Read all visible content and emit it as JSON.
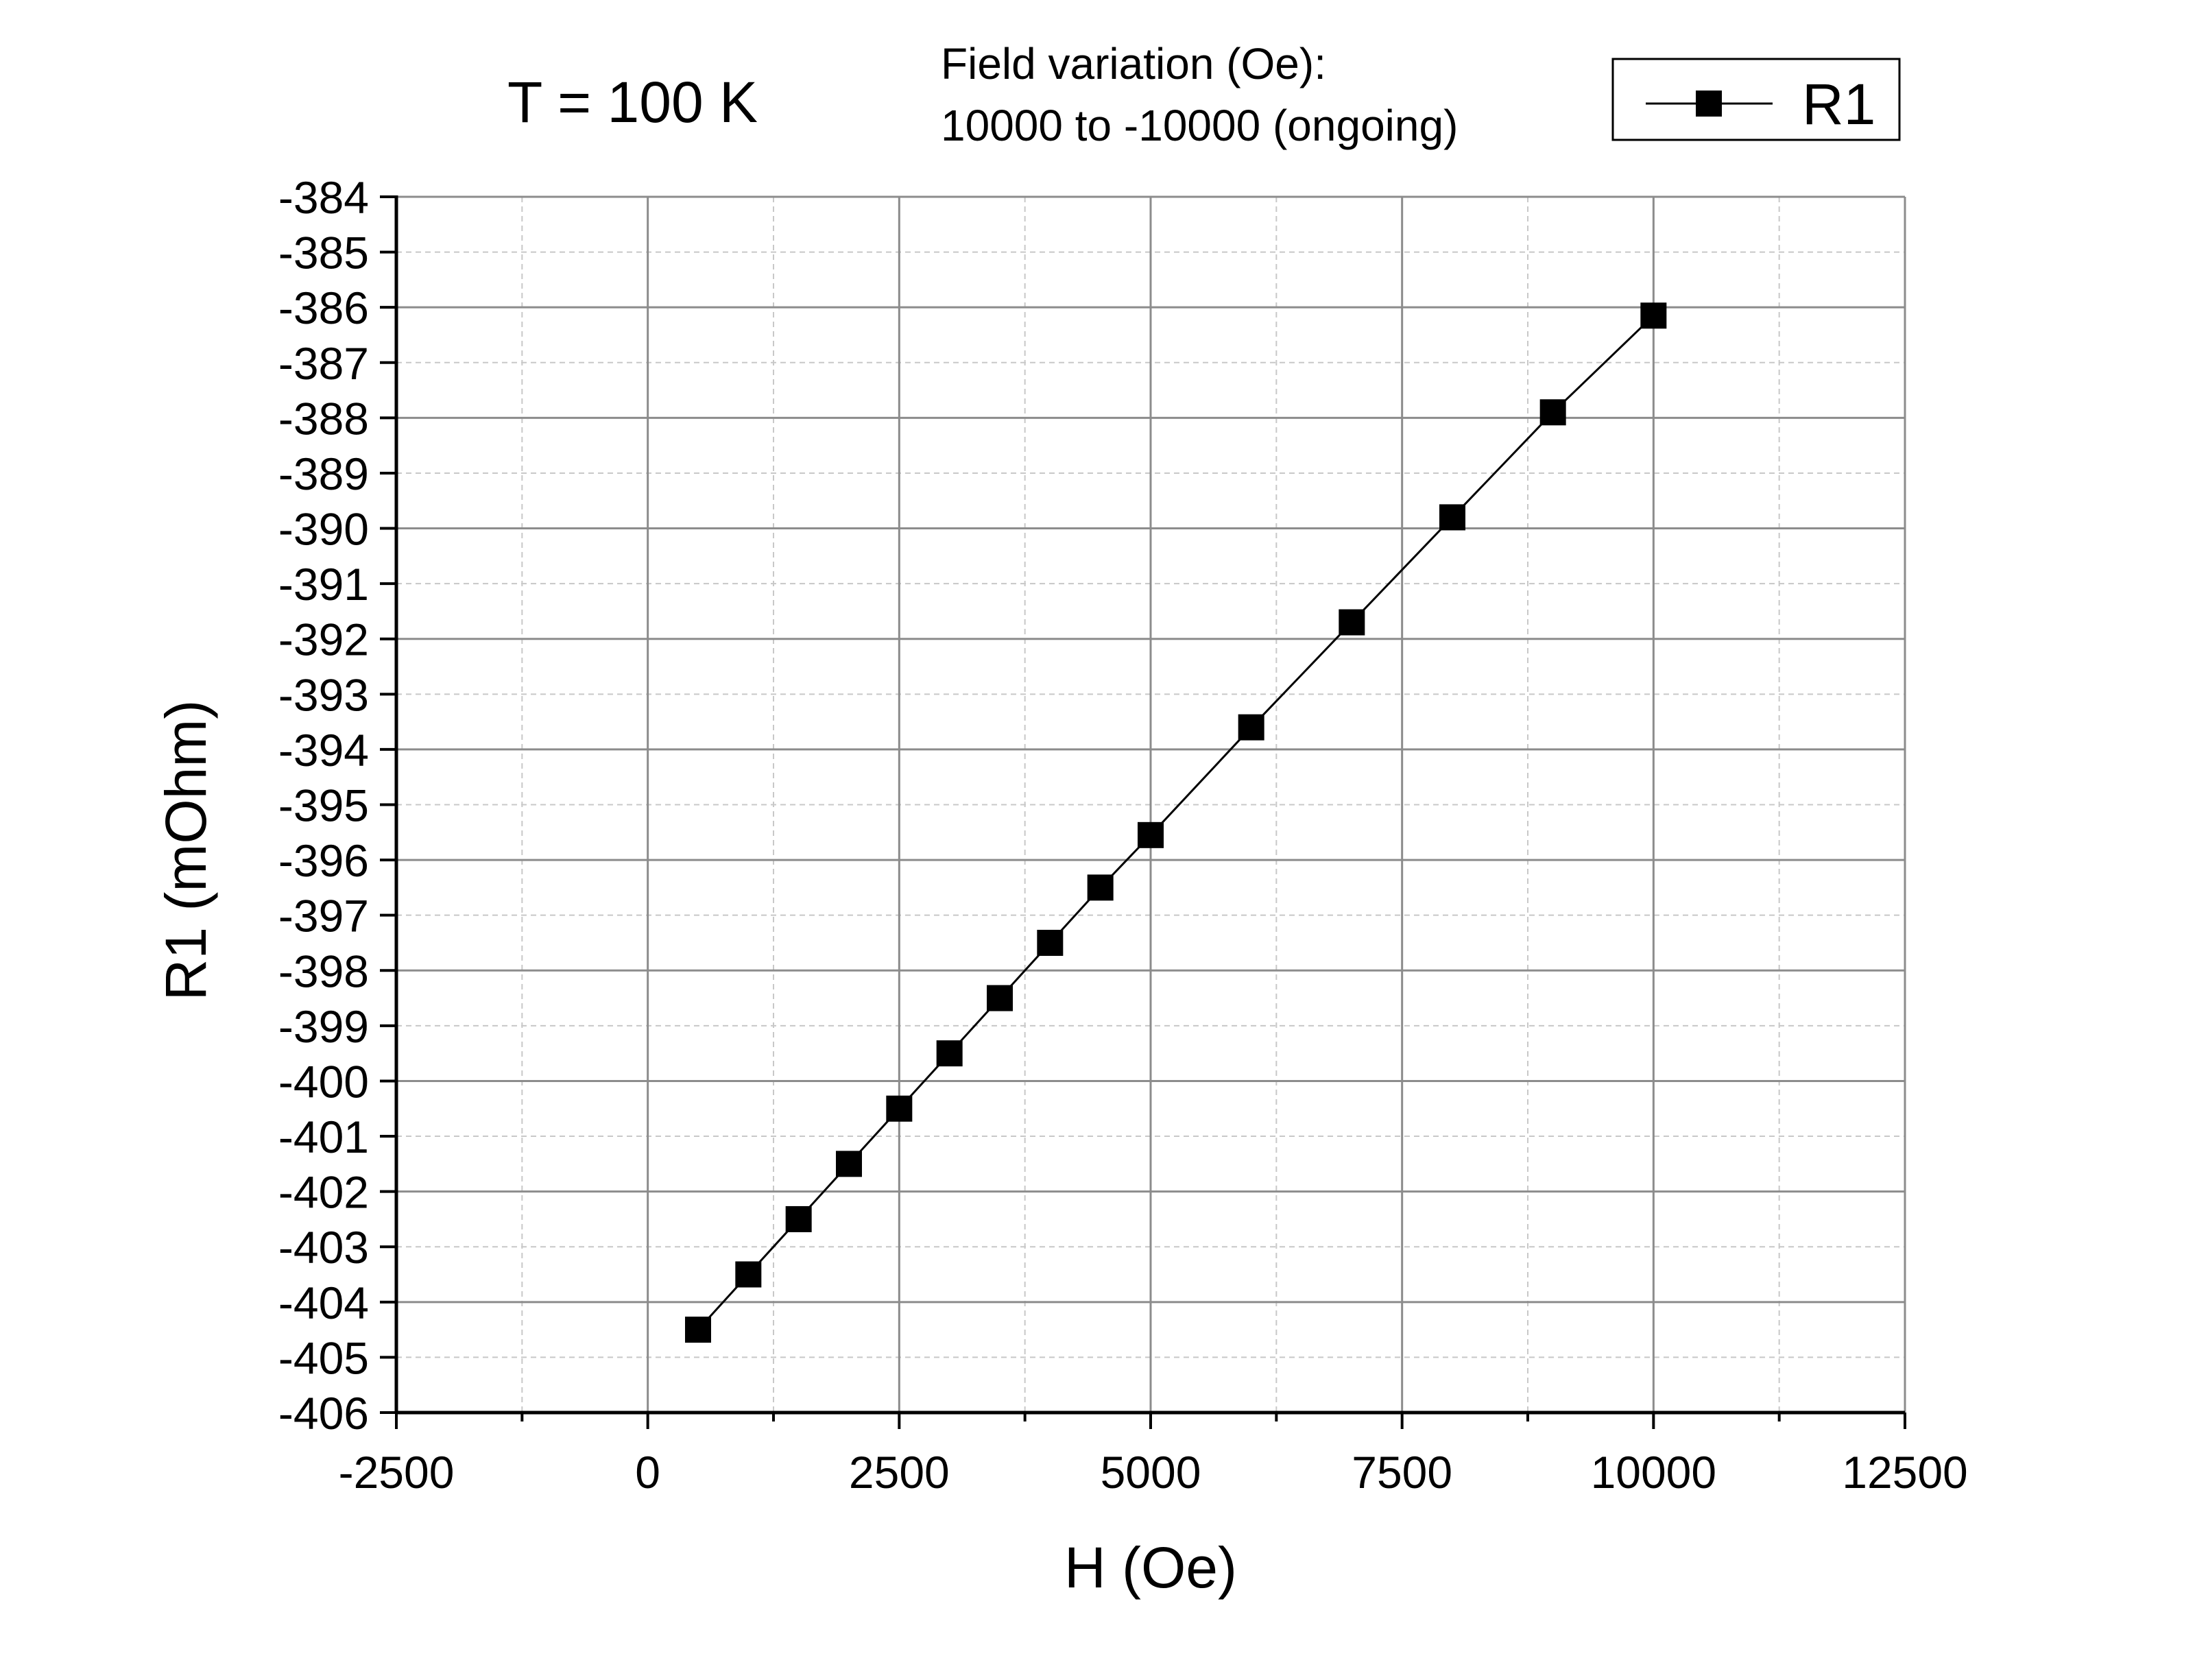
{
  "header": {
    "temperature_label": "T = 100 K",
    "field_variation_line1": "Field variation (Oe):",
    "field_variation_line2": "10000 to -10000 (ongoing)"
  },
  "colors": {
    "series": "#000000",
    "major_grid": "#8c8c8c",
    "minor_grid": "#c8c8c8"
  },
  "chart_data": {
    "type": "line",
    "title": "",
    "xlabel": "H (Oe)",
    "ylabel": "R1 (mOhm)",
    "xlim": [
      -2500,
      12500
    ],
    "ylim": [
      -406,
      -384
    ],
    "x_ticks": [
      -2500,
      0,
      2500,
      5000,
      7500,
      10000,
      12500
    ],
    "x_tick_labels": [
      "-2500",
      "0",
      "2500",
      "5000",
      "7500",
      "10000",
      "12500"
    ],
    "y_ticks": [
      -406,
      -405,
      -404,
      -403,
      -402,
      -401,
      -400,
      -399,
      -398,
      -397,
      -396,
      -395,
      -394,
      -393,
      -392,
      -391,
      -390,
      -389,
      -388,
      -387,
      -386,
      -385,
      -384
    ],
    "y_tick_labels": [
      "-406",
      "-405",
      "-404",
      "-403",
      "-402",
      "-401",
      "-400",
      "-399",
      "-398",
      "-397",
      "-396",
      "-395",
      "-394",
      "-393",
      "-392",
      "-391",
      "-390",
      "-389",
      "-388",
      "-387",
      "-386",
      "-385",
      "-384"
    ],
    "grid": true,
    "legend_position": "top-right",
    "series": [
      {
        "name": "R1",
        "marker": "square",
        "x": [
          500,
          1000,
          1500,
          2000,
          2500,
          3000,
          3500,
          4000,
          4500,
          5000,
          6000,
          7000,
          8000,
          9000,
          10000
        ],
        "y": [
          -404.5,
          -403.5,
          -402.5,
          -401.5,
          -400.5,
          -399.5,
          -398.5,
          -397.5,
          -396.5,
          -395.55,
          -393.6,
          -391.7,
          -389.8,
          -387.9,
          -386.15
        ]
      }
    ]
  }
}
